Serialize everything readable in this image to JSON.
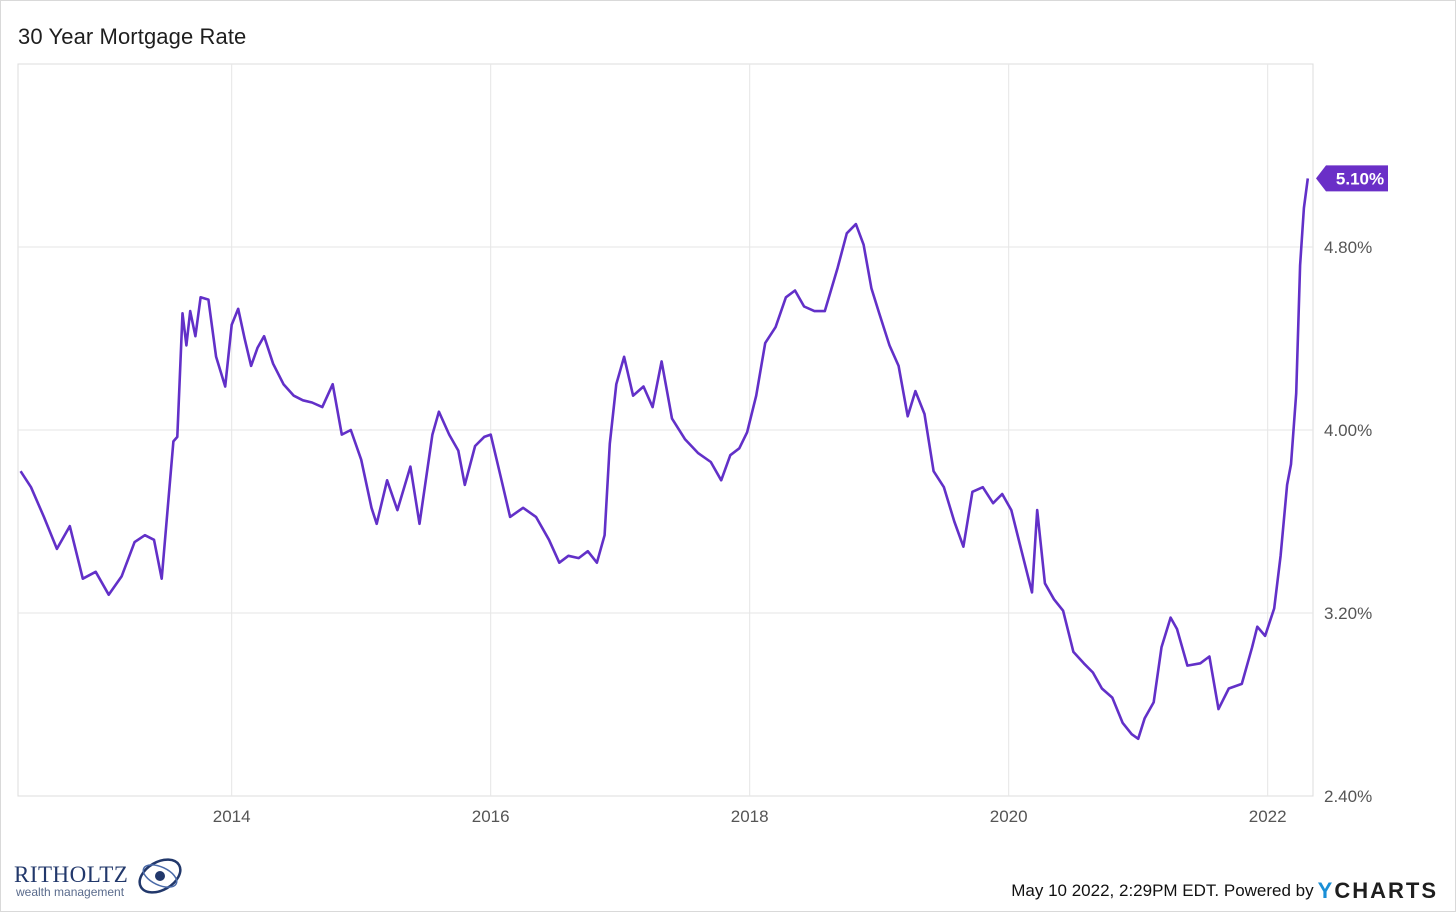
{
  "title": "30 Year Mortgage Rate",
  "footer": {
    "timestamp": "May 10 2022, 2:29PM EDT.  Powered by ",
    "brand_y": "Y",
    "brand_rest": "CHARTS"
  },
  "logo": {
    "name": "RITHOLTZ",
    "tagline": "wealth management"
  },
  "colors": {
    "line": "#6230c8",
    "grid": "#e6e6e6",
    "label_bg": "#6a2fc7"
  },
  "chart_data": {
    "type": "line",
    "title": "30 Year Mortgage Rate",
    "xlabel": "",
    "ylabel": "",
    "x_ticks": [
      "2014",
      "2016",
      "2018",
      "2020",
      "2022"
    ],
    "y_ticks": [
      "2.40%",
      "3.20%",
      "4.00%",
      "4.80%"
    ],
    "ylim": [
      2.4,
      5.6
    ],
    "xlim": [
      2012.35,
      2022.35
    ],
    "grid": true,
    "last_value_label": "5.10%",
    "series": [
      {
        "values": [
          [
            2012.37,
            3.82
          ],
          [
            2012.45,
            3.75
          ],
          [
            2012.55,
            3.62
          ],
          [
            2012.65,
            3.48
          ],
          [
            2012.75,
            3.58
          ],
          [
            2012.85,
            3.35
          ],
          [
            2012.95,
            3.38
          ],
          [
            2013.05,
            3.28
          ],
          [
            2013.15,
            3.36
          ],
          [
            2013.25,
            3.51
          ],
          [
            2013.33,
            3.54
          ],
          [
            2013.4,
            3.52
          ],
          [
            2013.46,
            3.35
          ],
          [
            2013.55,
            3.95
          ],
          [
            2013.58,
            3.97
          ],
          [
            2013.62,
            4.51
          ],
          [
            2013.65,
            4.37
          ],
          [
            2013.68,
            4.52
          ],
          [
            2013.72,
            4.41
          ],
          [
            2013.76,
            4.58
          ],
          [
            2013.82,
            4.57
          ],
          [
            2013.88,
            4.32
          ],
          [
            2013.95,
            4.19
          ],
          [
            2014.0,
            4.46
          ],
          [
            2014.05,
            4.53
          ],
          [
            2014.1,
            4.4
          ],
          [
            2014.15,
            4.28
          ],
          [
            2014.2,
            4.36
          ],
          [
            2014.25,
            4.41
          ],
          [
            2014.32,
            4.29
          ],
          [
            2014.4,
            4.2
          ],
          [
            2014.48,
            4.15
          ],
          [
            2014.55,
            4.13
          ],
          [
            2014.62,
            4.12
          ],
          [
            2014.7,
            4.1
          ],
          [
            2014.78,
            4.2
          ],
          [
            2014.85,
            3.98
          ],
          [
            2014.92,
            4.0
          ],
          [
            2015.0,
            3.87
          ],
          [
            2015.08,
            3.66
          ],
          [
            2015.12,
            3.59
          ],
          [
            2015.2,
            3.78
          ],
          [
            2015.28,
            3.65
          ],
          [
            2015.38,
            3.84
          ],
          [
            2015.45,
            3.59
          ],
          [
            2015.55,
            3.98
          ],
          [
            2015.6,
            4.08
          ],
          [
            2015.68,
            3.98
          ],
          [
            2015.75,
            3.91
          ],
          [
            2015.8,
            3.76
          ],
          [
            2015.88,
            3.93
          ],
          [
            2015.95,
            3.97
          ],
          [
            2016.0,
            3.98
          ],
          [
            2016.08,
            3.79
          ],
          [
            2016.15,
            3.62
          ],
          [
            2016.25,
            3.66
          ],
          [
            2016.35,
            3.62
          ],
          [
            2016.45,
            3.52
          ],
          [
            2016.53,
            3.42
          ],
          [
            2016.6,
            3.45
          ],
          [
            2016.68,
            3.44
          ],
          [
            2016.75,
            3.47
          ],
          [
            2016.82,
            3.42
          ],
          [
            2016.88,
            3.54
          ],
          [
            2016.92,
            3.94
          ],
          [
            2016.97,
            4.2
          ],
          [
            2017.03,
            4.32
          ],
          [
            2017.1,
            4.15
          ],
          [
            2017.18,
            4.19
          ],
          [
            2017.25,
            4.1
          ],
          [
            2017.32,
            4.3
          ],
          [
            2017.4,
            4.05
          ],
          [
            2017.5,
            3.96
          ],
          [
            2017.6,
            3.9
          ],
          [
            2017.7,
            3.86
          ],
          [
            2017.78,
            3.78
          ],
          [
            2017.85,
            3.89
          ],
          [
            2017.92,
            3.92
          ],
          [
            2017.98,
            3.99
          ],
          [
            2018.05,
            4.15
          ],
          [
            2018.12,
            4.38
          ],
          [
            2018.2,
            4.45
          ],
          [
            2018.28,
            4.58
          ],
          [
            2018.35,
            4.61
          ],
          [
            2018.42,
            4.54
          ],
          [
            2018.5,
            4.52
          ],
          [
            2018.58,
            4.52
          ],
          [
            2018.68,
            4.71
          ],
          [
            2018.75,
            4.86
          ],
          [
            2018.82,
            4.9
          ],
          [
            2018.88,
            4.81
          ],
          [
            2018.94,
            4.62
          ],
          [
            2019.0,
            4.51
          ],
          [
            2019.08,
            4.37
          ],
          [
            2019.15,
            4.28
          ],
          [
            2019.22,
            4.06
          ],
          [
            2019.28,
            4.17
          ],
          [
            2019.35,
            4.07
          ],
          [
            2019.42,
            3.82
          ],
          [
            2019.5,
            3.75
          ],
          [
            2019.58,
            3.6
          ],
          [
            2019.65,
            3.49
          ],
          [
            2019.72,
            3.73
          ],
          [
            2019.8,
            3.75
          ],
          [
            2019.88,
            3.68
          ],
          [
            2019.95,
            3.72
          ],
          [
            2020.02,
            3.65
          ],
          [
            2020.1,
            3.47
          ],
          [
            2020.18,
            3.29
          ],
          [
            2020.22,
            3.65
          ],
          [
            2020.28,
            3.33
          ],
          [
            2020.35,
            3.26
          ],
          [
            2020.42,
            3.21
          ],
          [
            2020.5,
            3.03
          ],
          [
            2020.58,
            2.98
          ],
          [
            2020.65,
            2.94
          ],
          [
            2020.72,
            2.87
          ],
          [
            2020.8,
            2.83
          ],
          [
            2020.88,
            2.72
          ],
          [
            2020.95,
            2.67
          ],
          [
            2021.0,
            2.65
          ],
          [
            2021.05,
            2.74
          ],
          [
            2021.12,
            2.81
          ],
          [
            2021.18,
            3.05
          ],
          [
            2021.25,
            3.18
          ],
          [
            2021.3,
            3.13
          ],
          [
            2021.38,
            2.97
          ],
          [
            2021.48,
            2.98
          ],
          [
            2021.55,
            3.01
          ],
          [
            2021.62,
            2.78
          ],
          [
            2021.7,
            2.87
          ],
          [
            2021.8,
            2.89
          ],
          [
            2021.88,
            3.05
          ],
          [
            2021.92,
            3.14
          ],
          [
            2021.98,
            3.1
          ],
          [
            2022.05,
            3.22
          ],
          [
            2022.1,
            3.45
          ],
          [
            2022.15,
            3.76
          ],
          [
            2022.18,
            3.85
          ],
          [
            2022.22,
            4.16
          ],
          [
            2022.25,
            4.72
          ],
          [
            2022.28,
            4.97
          ],
          [
            2022.31,
            5.1
          ]
        ]
      }
    ]
  }
}
